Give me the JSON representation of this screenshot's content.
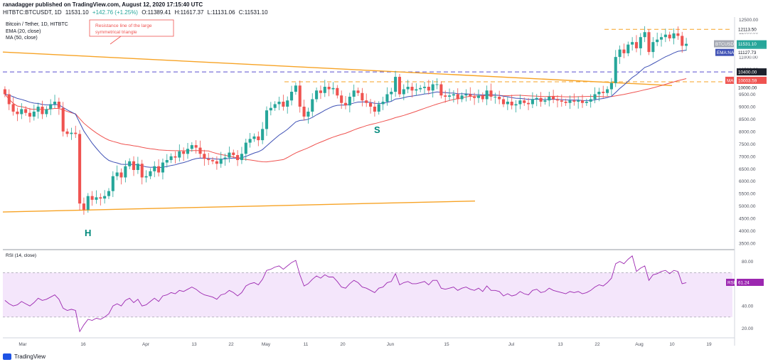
{
  "header": {
    "line1": "ranadagger published on TradingView.com, August 12, 2020 17:15:40 UTC",
    "symbol_line": "HITBTC:BTCUSDT, 1D",
    "open": "O:11389.41",
    "high": "H:11617.37",
    "low": "L:11131.06",
    "close": "C:11531.10",
    "close_price": "11531.10",
    "change": "+142.76 (+1.25%)"
  },
  "legend": {
    "pair": "Bitcoin / Tether, 1D, HITBTC",
    "ema": "EMA (20, close)",
    "ma": "MA (50, close)"
  },
  "footer": {
    "brand": "TradingView"
  },
  "colors": {
    "up": "#26a69a",
    "down": "#ef5350",
    "ema": "#3f51b5",
    "ma": "#ef5350",
    "triangle": "#f7a325",
    "level_dash": "#5a4fcf",
    "rsi_line": "#9c27b0"
  },
  "chart_data": [
    {
      "type": "candlestick",
      "title": "Bitcoin / Tether, 1D, HITBTC",
      "x_ticks": [
        "Mar",
        "16",
        "Apr",
        "13",
        "22",
        "May",
        "11",
        "20",
        "Jun",
        "15",
        "Jul",
        "13",
        "22",
        "Aug",
        "10",
        "19"
      ],
      "y_ticks": [
        3500,
        4000,
        4500,
        5000,
        5500,
        6000,
        6500,
        7000,
        7500,
        8000,
        8500,
        9000,
        9500,
        10000,
        10500,
        11000,
        11500,
        12000,
        12500
      ],
      "y_tick_labels": [
        "3500.00",
        "4000.00",
        "4500.00",
        "5000.00",
        "5500.00",
        "6000.00",
        "6500.00",
        "7000.00",
        "7500.00",
        "8000.00",
        "8500.00",
        "9000.00",
        "9500.00",
        "10000.00",
        "10500.00",
        "11000.00",
        "11500.00",
        "12000.00",
        "12500.00"
      ],
      "ylim": [
        3300,
        12550
      ],
      "closes": [
        9500,
        9100,
        8800,
        8700,
        8900,
        8750,
        8600,
        8800,
        9000,
        8700,
        8900,
        9100,
        9200,
        8950,
        8000,
        7900,
        7950,
        7900,
        5100,
        4850,
        5400,
        5250,
        5350,
        5300,
        5400,
        5600,
        6200,
        6350,
        6150,
        6600,
        6800,
        6450,
        6700,
        6150,
        6200,
        6400,
        6600,
        6350,
        6750,
        6850,
        7000,
        6950,
        7200,
        7100,
        7300,
        7450,
        7350,
        7100,
        6900,
        6850,
        6800,
        6700,
        6900,
        6950,
        7150,
        7050,
        6850,
        7100,
        7550,
        7700,
        7800,
        7650,
        8100,
        8850,
        8950,
        9100,
        9200,
        9000,
        9250,
        9600,
        9850,
        9000,
        8600,
        8800,
        9300,
        9650,
        9550,
        9800,
        9700,
        9750,
        9450,
        9150,
        9050,
        9400,
        9650,
        9550,
        9250,
        9150,
        9000,
        8800,
        9100,
        9200,
        9500,
        9600,
        10200,
        9500,
        9700,
        9800,
        9650,
        9700,
        9750,
        9800,
        9650,
        9900,
        9900,
        9450,
        9400,
        9450,
        9500,
        9300,
        9450,
        9500,
        9400,
        9350,
        9450,
        9300,
        9650,
        9400,
        9400,
        9300,
        9100,
        9200,
        9050,
        9100,
        9250,
        9150,
        9100,
        9300,
        9350,
        9200,
        9250,
        9400,
        9300,
        9250,
        9200,
        9150,
        9250,
        9200,
        9250,
        9150,
        9200,
        9300,
        9500,
        9600,
        9550,
        9700,
        9950,
        11000,
        11300,
        11150,
        11500,
        11600,
        11350,
        11800,
        12000,
        11200,
        11600,
        11700,
        11800,
        11900,
        11750,
        11950,
        11850,
        11450,
        11530
      ],
      "annotations": [
        "Resistance line of the large symmetrical triangle",
        "H",
        "S"
      ],
      "price_labels": {
        "symbol": "BTCUSDT",
        "last": "11531.10",
        "countdown": "06:44:22",
        "ema": "EMA:NA",
        "ema_value": "11127.73",
        "level_1": "10400.00",
        "ma": "MA:",
        "ma_value": "10003.59",
        "level_2": "10000.00",
        "top": "12113.50"
      },
      "levels": [
        12113.5,
        10400,
        10000
      ],
      "legend_entries": [
        "EMA (20, close)",
        "MA (50, close)"
      ]
    },
    {
      "type": "line",
      "title": "RSI (14, close)",
      "y_ticks": [
        20,
        40,
        60,
        80
      ],
      "y_tick_labels": [
        "20.00",
        "40.00",
        "60.00",
        "80.00"
      ],
      "bands": [
        30,
        70
      ],
      "ylim": [
        12,
        90
      ],
      "last_label": "RSI",
      "last_value": "61.24",
      "values": [
        45,
        42,
        40,
        41,
        44,
        42,
        40,
        43,
        47,
        45,
        46,
        48,
        50,
        46,
        38,
        36,
        37,
        36,
        17,
        23,
        28,
        27,
        29,
        28,
        30,
        33,
        40,
        42,
        40,
        45,
        47,
        43,
        46,
        40,
        41,
        44,
        47,
        44,
        49,
        50,
        52,
        51,
        54,
        53,
        55,
        57,
        55,
        52,
        50,
        49,
        48,
        46,
        50,
        51,
        54,
        52,
        49,
        52,
        58,
        60,
        61,
        59,
        64,
        72,
        73,
        75,
        76,
        73,
        76,
        79,
        81,
        68,
        58,
        60,
        64,
        67,
        65,
        68,
        66,
        66,
        62,
        57,
        56,
        60,
        63,
        61,
        57,
        56,
        54,
        52,
        56,
        57,
        61,
        62,
        69,
        59,
        61,
        62,
        60,
        60,
        61,
        62,
        59,
        63,
        63,
        56,
        55,
        56,
        57,
        54,
        56,
        57,
        55,
        54,
        56,
        53,
        58,
        54,
        54,
        53,
        49,
        51,
        49,
        50,
        53,
        51,
        50,
        54,
        55,
        52,
        53,
        56,
        54,
        53,
        52,
        51,
        53,
        52,
        53,
        51,
        52,
        54,
        57,
        59,
        58,
        61,
        65,
        78,
        80,
        78,
        82,
        85,
        71,
        74,
        76,
        63,
        68,
        69,
        71,
        72,
        69,
        72,
        71,
        60,
        61
      ]
    }
  ]
}
